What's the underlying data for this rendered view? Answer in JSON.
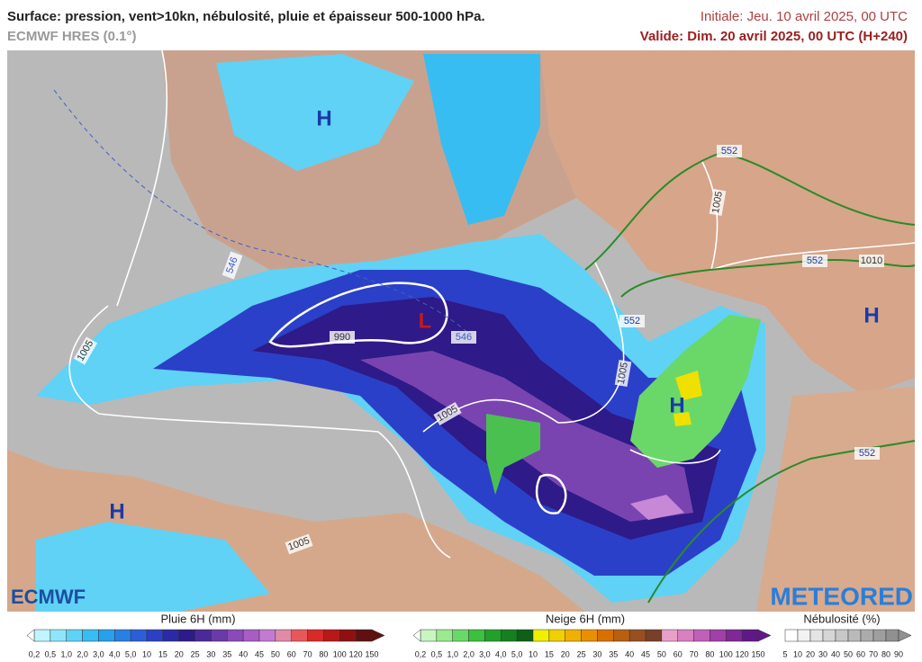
{
  "header": {
    "title": "Surface: pression, vent>10kn, nébulosité, pluie et épaisseur 500-1000 hPa.",
    "model": "ECMWF HRES (0.1°)",
    "initial": "Initiale: Jeu. 10 avril 2025, 00 UTC",
    "valid": "Valide: Dim. 20 avril 2025, 00 UTC (H+240)"
  },
  "map": {
    "labels": [
      "H",
      "H",
      "H",
      "L",
      "H",
      "1005",
      "1005",
      "1005",
      "1005",
      "1005",
      "1010",
      "552",
      "552",
      "552",
      "552",
      "546",
      "546",
      "990"
    ]
  },
  "logos": {
    "left": "ECMWF",
    "right": "METEORED"
  },
  "legend": {
    "rain": {
      "title": "Pluie 6H (mm)",
      "ticks": [
        "0,2",
        "0,5",
        "1,0",
        "2,0",
        "3,0",
        "4,0",
        "5,0",
        "10",
        "15",
        "20",
        "25",
        "30",
        "35",
        "40",
        "45",
        "50",
        "60",
        "70",
        "80",
        "100",
        "120",
        "150"
      ],
      "colors": [
        "#bff5ff",
        "#8fe6fb",
        "#5fd2f6",
        "#38bdf2",
        "#28a0ec",
        "#2a7fe3",
        "#2b5fd8",
        "#2c40c4",
        "#2b2aa6",
        "#2e1a88",
        "#4a2a98",
        "#6a3aa8",
        "#8a4ab8",
        "#a85cc4",
        "#c27ad2",
        "#e08aa8",
        "#e8585a",
        "#d82a2a",
        "#b81818",
        "#901010",
        "#601010"
      ]
    },
    "snow": {
      "title": "Neige 6H (mm)",
      "ticks": [
        "0,2",
        "0,5",
        "1,0",
        "2,0",
        "3,0",
        "4,0",
        "5,0",
        "10",
        "15",
        "20",
        "25",
        "30",
        "35",
        "40",
        "45",
        "50",
        "60",
        "70",
        "80",
        "100",
        "120",
        "150"
      ],
      "colors": [
        "#c8f5c0",
        "#9aea90",
        "#6ad868",
        "#3cc040",
        "#22a02a",
        "#168020",
        "#0e6018",
        "#f0f000",
        "#f0d000",
        "#f0b000",
        "#e89000",
        "#d87000",
        "#b86010",
        "#985020",
        "#784028",
        "#e8a0c8",
        "#d880c0",
        "#c060b8",
        "#a040a8",
        "#802898",
        "#601888"
      ]
    },
    "cloud": {
      "title": "Nébulosité (%)",
      "ticks": [
        "5",
        "10",
        "20",
        "30",
        "40",
        "50",
        "60",
        "70",
        "80",
        "90"
      ],
      "colors": [
        "#ffffff",
        "#f2f2f2",
        "#e4e4e4",
        "#d6d6d6",
        "#c8c8c8",
        "#bababa",
        "#acacac",
        "#9e9e9e",
        "#909090"
      ]
    }
  }
}
